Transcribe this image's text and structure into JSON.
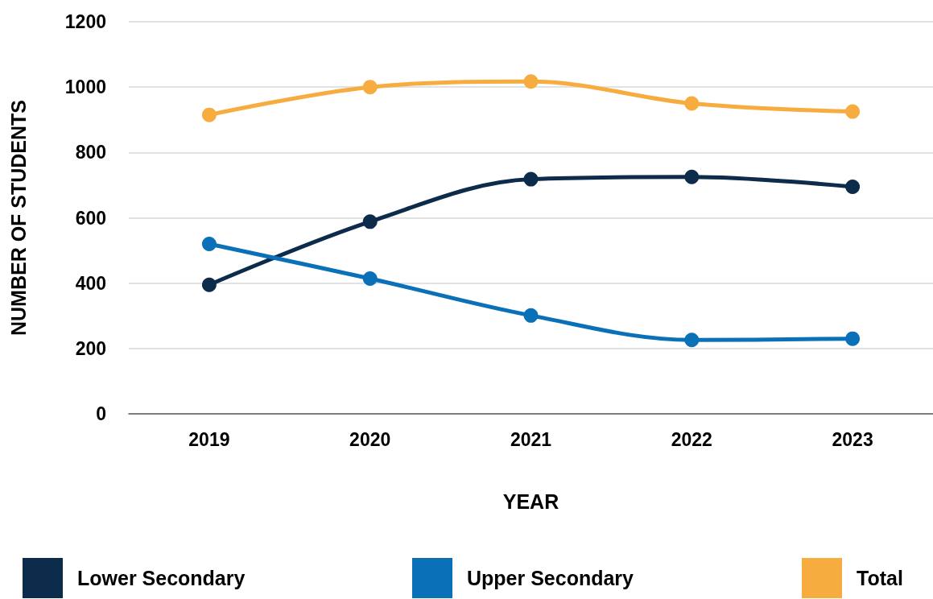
{
  "chart_data": {
    "type": "line",
    "xlabel": "YEAR",
    "ylabel": "NUMBER OF STUDENTS",
    "categories": [
      "2019",
      "2020",
      "2021",
      "2022",
      "2023"
    ],
    "series": [
      {
        "name": "Lower Secondary",
        "color": "#0d2b4a",
        "values": [
          395,
          588,
          718,
          725,
          695
        ]
      },
      {
        "name": "Upper Secondary",
        "color": "#0a70b8",
        "values": [
          520,
          414,
          301,
          226,
          230
        ]
      },
      {
        "name": "Total",
        "color": "#f7ac40",
        "values": [
          915,
          1000,
          1017,
          950,
          925
        ]
      }
    ],
    "ylim": [
      0,
      1200
    ],
    "yticks": [
      0,
      200,
      400,
      600,
      800,
      1000,
      1200
    ],
    "grid": "y",
    "legend": "bottom",
    "marker": "circle",
    "line_style": "solid"
  }
}
